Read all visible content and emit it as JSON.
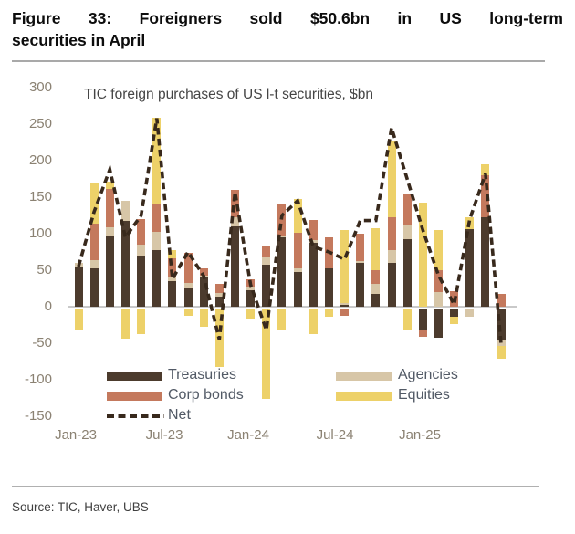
{
  "figure": {
    "title_line1": "Figure 33: Foreigners sold $50.6bn in US long-term",
    "title_line2": "securities in April",
    "source": "Source: TIC, Haver, UBS"
  },
  "chart_data": {
    "type": "bar",
    "subtype": "stacked-bar-with-dashed-line",
    "title": "TIC foreign purchases of US l-t securities, $bn",
    "unit": "$bn",
    "categories": [
      "Jan-23",
      "Feb-23",
      "Mar-23",
      "Apr-23",
      "May-23",
      "Jun-23",
      "Jul-23",
      "Aug-23",
      "Sep-23",
      "Oct-23",
      "Nov-23",
      "Dec-23",
      "Jan-24",
      "Feb-24",
      "Mar-24",
      "Apr-24",
      "May-24",
      "Jun-24",
      "Jul-24",
      "Aug-24",
      "Sep-24",
      "Oct-24",
      "Nov-24",
      "Dec-24",
      "Jan-25",
      "Feb-25",
      "Mar-25",
      "Apr-25"
    ],
    "series": [
      {
        "name": "Treasuries",
        "color": "#4C3B2D",
        "values": [
          55,
          52,
          97,
          118,
          70,
          78,
          35,
          26,
          40,
          14,
          110,
          22,
          57,
          95,
          47,
          87,
          52,
          3,
          60,
          18,
          60,
          92,
          -31,
          -41,
          -12,
          106,
          122,
          -43
        ]
      },
      {
        "name": "Agencies",
        "color": "#D7C6A7",
        "values": [
          5,
          12,
          12,
          27,
          15,
          24,
          6,
          6,
          3,
          5,
          12,
          6,
          12,
          3,
          6,
          4,
          0,
          2,
          2,
          13,
          17,
          21,
          0,
          20,
          0,
          -12,
          0,
          -9
        ]
      },
      {
        "name": "Corp bonds",
        "color": "#C4795D",
        "values": [
          0,
          50,
          52,
          0,
          35,
          38,
          25,
          42,
          9,
          12,
          38,
          10,
          14,
          43,
          48,
          28,
          43,
          -10,
          38,
          19,
          46,
          42,
          -8,
          30,
          21,
          0,
          58,
          17
        ]
      },
      {
        "name": "Equities",
        "color": "#EDD169",
        "values": [
          -30,
          56,
          10,
          -42,
          -36,
          119,
          11,
          -10,
          -25,
          -80,
          0,
          -15,
          -124,
          -30,
          46,
          -35,
          -12,
          100,
          0,
          58,
          103,
          -29,
          143,
          55,
          -10,
          16,
          15,
          -17
        ]
      }
    ],
    "line_series": {
      "name": "Net",
      "color": "#38291C",
      "style": "dashed",
      "values": [
        55,
        130,
        188,
        95,
        125,
        258,
        38,
        75,
        42,
        -45,
        157,
        30,
        -32,
        125,
        145,
        82,
        75,
        65,
        118,
        118,
        245,
        175,
        105,
        43,
        3,
        120,
        182,
        -51
      ]
    },
    "ylim": [
      -150,
      300
    ],
    "y_ticks": [
      300,
      250,
      200,
      150,
      100,
      50,
      0,
      -50,
      -100,
      -150
    ],
    "x_tick_labels": [
      "Jan-23",
      "Jul-23",
      "Jan-24",
      "Jul-24",
      "Jan-25"
    ],
    "grid": "none",
    "legend_position": "inside-bottom",
    "legend": {
      "col1": [
        "Treasuries",
        "Corp bonds",
        "Net"
      ],
      "col2": [
        "Agencies",
        "Equities"
      ]
    }
  },
  "colors": {
    "zero_line": "#c9c9c9",
    "axis_text": "#8B8273",
    "legend_text": "#525A66",
    "net_line": "#38291C"
  }
}
